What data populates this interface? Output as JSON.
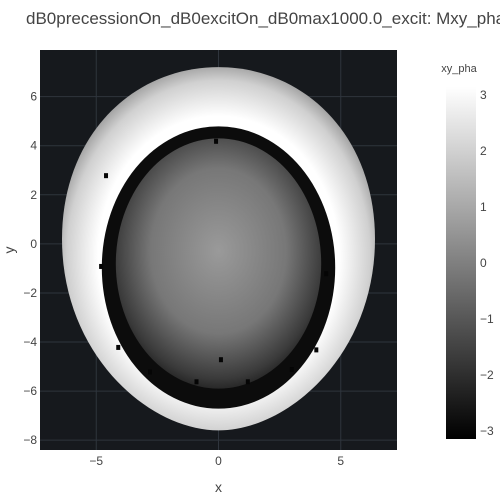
{
  "title": "dB0precessionOn_dB0excitOn_dB0max1000.0_excit: Mxy_pha",
  "chart_data": {
    "type": "heatmap",
    "title": "dB0precessionOn_dB0excitOn_dB0max1000.0_excit: Mxy_pha",
    "xlabel": "x",
    "ylabel": "y",
    "xlim": [
      -7.3,
      7.3
    ],
    "ylim": [
      -8.4,
      7.9
    ],
    "xticks": [
      -5,
      0,
      5
    ],
    "xtick_labels": [
      "−5",
      "0",
      "5"
    ],
    "yticks": [
      6,
      4,
      2,
      0,
      -2,
      -4,
      -6,
      -8
    ],
    "ytick_labels": [
      "6",
      "4",
      "2",
      "0",
      "−2",
      "−4",
      "−6",
      "−8"
    ],
    "colorscale": "Greys",
    "background_color": "#16191d",
    "colorbar": {
      "title": "xy_pha",
      "zmin": -3.14,
      "zmax": 3.14,
      "ticks": [
        3,
        2,
        1,
        0,
        -1,
        -2,
        -3
      ],
      "tick_labels": [
        "3",
        "2",
        "1",
        "0",
        "−1",
        "−2",
        "−3"
      ]
    },
    "head_outline": {
      "center": [
        0,
        0.2
      ],
      "x_radius": 6.4,
      "y_radius_top": 7.0,
      "y_radius_bottom": 7.8
    },
    "brain_region": {
      "center": [
        0,
        -0.8
      ],
      "x_radius": 4.2,
      "y_radius": 5.1
    },
    "grid": true
  }
}
